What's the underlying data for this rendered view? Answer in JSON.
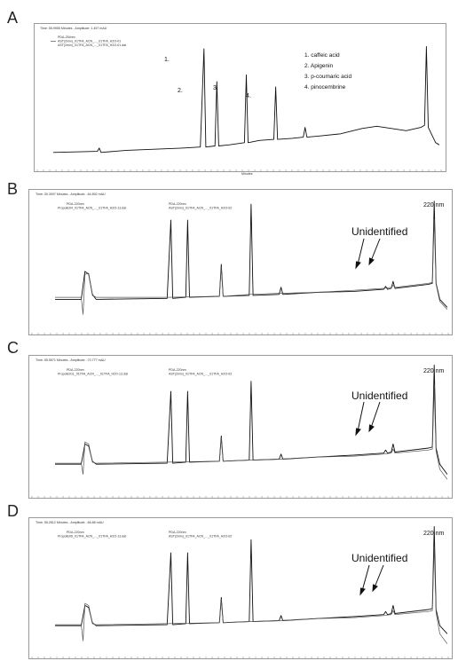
{
  "panels": [
    {
      "letter": "A",
      "status": "Time: 55.9955 Minutes - Amplitude: 1.457 mAU",
      "legend_lines": [
        "PDA-254nm",
        "AST(2mix)_01TFA_ACN_..._01TFA_H2O-01",
        "AST(2mix)_01TFA_ACN_..._01TFA_H2O-01.dat"
      ],
      "x_axis_label": "Minutes",
      "peak_numbers": [
        "1.",
        "2.",
        "3.",
        "4."
      ],
      "compound_list": [
        "1. caffeic acid",
        "2. Apigenin",
        "3. p-coumaric acid",
        "4. pinocembrine"
      ]
    },
    {
      "letter": "B",
      "status": "Time: 30.3097 Minutes - Amplitude: -64.892 mAU",
      "legend_col1": [
        "PDA-220nm",
        "Propolis04_01TFA_ACN_..._01TFA_H2O-13.dat"
      ],
      "legend_col2": [
        "PDA-220nm",
        "AST(2mix)_01TFA_ACN_..._01TFA_H2O-02"
      ],
      "wavelength": "220 nm",
      "annotation": "Unidentified"
    },
    {
      "letter": "C",
      "status": "Time: 55.5571 Minutes - Amplitude: -70.777 mAU",
      "legend_col1": [
        "PDA-220nm",
        "Propolis011_01TFA_ACN_..._01TFA_H2O-13.dat"
      ],
      "legend_col2": [
        "PDA-220nm",
        "AST(2mix)_01TFA_ACN_..._01TFA_H2O-02"
      ],
      "wavelength": "220 nm",
      "annotation": "Unidentified"
    },
    {
      "letter": "D",
      "status": "Time: 55.2812 Minutes - Amplitude: -66.88 mAU",
      "legend_col1": [
        "PDA-220nm",
        "Propolis06_01TFA_ACN_..._01TFA_H2O-13.dat"
      ],
      "legend_col2": [
        "PDA-220nm",
        "AST(2mix)_01TFA_ACN_..._01TFA_H2O-02"
      ],
      "wavelength": "220 nm",
      "annotation": "Unidentified"
    }
  ],
  "chart_data": [
    {
      "type": "line",
      "panel": "A",
      "x_range": [
        0,
        100
      ],
      "y_range": [
        0,
        100
      ],
      "series": [
        {
          "points": [
            [
              0,
              5
            ],
            [
              12,
              6
            ],
            [
              12.5,
              9
            ],
            [
              13,
              5
            ],
            [
              20,
              7
            ],
            [
              35,
              9
            ],
            [
              40,
              10
            ],
            [
              41,
              100
            ],
            [
              41.5,
              10
            ],
            [
              44,
              11
            ],
            [
              44.5,
              70
            ],
            [
              45,
              11
            ],
            [
              48,
              12
            ],
            [
              52,
              14
            ],
            [
              52.5,
              76
            ],
            [
              53,
              14
            ],
            [
              56,
              16
            ],
            [
              60,
              17
            ],
            [
              60.5,
              65
            ],
            [
              61,
              17
            ],
            [
              65,
              18
            ],
            [
              68,
              19
            ],
            [
              68.5,
              28
            ],
            [
              69,
              19
            ],
            [
              72,
              20
            ],
            [
              78,
              22
            ],
            [
              84,
              27
            ],
            [
              88,
              29
            ],
            [
              92,
              27
            ],
            [
              96,
              25
            ],
            [
              100,
              28
            ],
            [
              101,
              30
            ],
            [
              101.5,
              102
            ],
            [
              102,
              28
            ],
            [
              104,
              14
            ],
            [
              105,
              12
            ]
          ]
        }
      ]
    },
    {
      "type": "line",
      "panel": "B",
      "x_range": [
        0,
        100
      ],
      "y_range": [
        0,
        100
      ],
      "series": [
        {
          "points": [
            [
              0,
              20
            ],
            [
              7,
              20
            ],
            [
              8,
              48
            ],
            [
              9,
              45
            ],
            [
              10,
              25
            ],
            [
              11,
              20
            ],
            [
              30,
              21
            ],
            [
              31,
              99
            ],
            [
              31.5,
              21
            ],
            [
              35,
              22
            ],
            [
              35.5,
              99
            ],
            [
              36,
              22
            ],
            [
              44,
              23
            ],
            [
              44.5,
              55
            ],
            [
              45,
              23
            ],
            [
              52,
              24
            ],
            [
              52.5,
              115
            ],
            [
              53,
              24
            ],
            [
              60,
              25
            ],
            [
              60.5,
              32
            ],
            [
              61,
              25
            ],
            [
              70,
              27
            ],
            [
              80,
              28
            ],
            [
              88,
              30
            ],
            [
              88.5,
              33
            ],
            [
              89,
              30
            ],
            [
              90,
              31
            ],
            [
              90.5,
              38
            ],
            [
              91,
              31
            ],
            [
              100,
              35
            ],
            [
              101,
              36
            ],
            [
              101.5,
              118
            ],
            [
              102,
              36
            ],
            [
              103,
              20
            ],
            [
              105,
              12
            ]
          ]
        },
        {
          "points": [
            [
              0,
              22
            ],
            [
              7,
              22
            ],
            [
              7.5,
              5
            ],
            [
              8,
              45
            ],
            [
              9,
              46
            ],
            [
              10,
              24
            ],
            [
              11,
              22
            ],
            [
              30,
              22
            ],
            [
              44,
              23
            ],
            [
              44.5,
              52
            ],
            [
              45,
              23
            ],
            [
              52,
              25
            ],
            [
              60,
              26
            ],
            [
              70,
              27
            ],
            [
              80,
              29
            ],
            [
              88,
              31
            ],
            [
              90,
              32
            ],
            [
              90.5,
              34
            ],
            [
              91,
              32
            ],
            [
              100,
              36
            ],
            [
              101,
              37
            ],
            [
              101.5,
              100
            ],
            [
              102,
              35
            ],
            [
              103,
              18
            ],
            [
              105,
              10
            ]
          ]
        }
      ]
    },
    {
      "type": "line",
      "panel": "C",
      "x_range": [
        0,
        100
      ],
      "y_range": [
        0,
        100
      ],
      "series": [
        {
          "points": [
            [
              0,
              20
            ],
            [
              7,
              20
            ],
            [
              8,
              40
            ],
            [
              9,
              38
            ],
            [
              10,
              23
            ],
            [
              11,
              20
            ],
            [
              30,
              21
            ],
            [
              31,
              92
            ],
            [
              31.5,
              21
            ],
            [
              35,
              22
            ],
            [
              35.5,
              92
            ],
            [
              36,
              22
            ],
            [
              44,
              23
            ],
            [
              44.5,
              48
            ],
            [
              45,
              23
            ],
            [
              52,
              24
            ],
            [
              52.5,
              102
            ],
            [
              53,
              24
            ],
            [
              60,
              25
            ],
            [
              60.5,
              30
            ],
            [
              61,
              25
            ],
            [
              70,
              27
            ],
            [
              80,
              29
            ],
            [
              88,
              31
            ],
            [
              88.5,
              34
            ],
            [
              89,
              31
            ],
            [
              90,
              32
            ],
            [
              90.5,
              40
            ],
            [
              91,
              32
            ],
            [
              100,
              36
            ],
            [
              101,
              37
            ],
            [
              101.5,
              118
            ],
            [
              102,
              36
            ],
            [
              103,
              20
            ],
            [
              105,
              10
            ]
          ]
        },
        {
          "points": [
            [
              0,
              21
            ],
            [
              7,
              21
            ],
            [
              7.5,
              10
            ],
            [
              8,
              42
            ],
            [
              9,
              40
            ],
            [
              10,
              22
            ],
            [
              11,
              21
            ],
            [
              30,
              22
            ],
            [
              44,
              23
            ],
            [
              44.5,
              46
            ],
            [
              45,
              23
            ],
            [
              52,
              24
            ],
            [
              60,
              25
            ],
            [
              70,
              27
            ],
            [
              80,
              28
            ],
            [
              88,
              30
            ],
            [
              90,
              31
            ],
            [
              90.5,
              35
            ],
            [
              91,
              31
            ],
            [
              100,
              34
            ],
            [
              101,
              35
            ],
            [
              101.5,
              95
            ],
            [
              102,
              33
            ],
            [
              103,
              15
            ],
            [
              105,
              5
            ]
          ]
        }
      ]
    },
    {
      "type": "line",
      "panel": "D",
      "x_range": [
        0,
        100
      ],
      "y_range": [
        0,
        100
      ],
      "series": [
        {
          "points": [
            [
              0,
              20
            ],
            [
              7,
              20
            ],
            [
              8,
              40
            ],
            [
              9,
              38
            ],
            [
              10,
              23
            ],
            [
              11,
              20
            ],
            [
              30,
              21
            ],
            [
              31,
              92
            ],
            [
              31.5,
              21
            ],
            [
              35,
              22
            ],
            [
              35.5,
              92
            ],
            [
              36,
              22
            ],
            [
              44,
              23
            ],
            [
              44.5,
              48
            ],
            [
              45,
              23
            ],
            [
              52,
              24
            ],
            [
              52.5,
              105
            ],
            [
              53,
              24
            ],
            [
              60,
              25
            ],
            [
              60.5,
              30
            ],
            [
              61,
              25
            ],
            [
              70,
              27
            ],
            [
              80,
              29
            ],
            [
              88,
              31
            ],
            [
              88.5,
              34
            ],
            [
              89,
              31
            ],
            [
              90,
              32
            ],
            [
              90.5,
              40
            ],
            [
              91,
              32
            ],
            [
              100,
              36
            ],
            [
              101,
              37
            ],
            [
              101.5,
              118
            ],
            [
              102,
              36
            ],
            [
              103,
              20
            ],
            [
              105,
              12
            ]
          ]
        },
        {
          "points": [
            [
              0,
              21
            ],
            [
              7,
              21
            ],
            [
              7.5,
              5
            ],
            [
              8,
              42
            ],
            [
              9,
              40
            ],
            [
              10,
              22
            ],
            [
              11,
              21
            ],
            [
              30,
              22
            ],
            [
              44,
              23
            ],
            [
              44.5,
              46
            ],
            [
              45,
              23
            ],
            [
              52,
              24
            ],
            [
              60,
              25
            ],
            [
              70,
              27
            ],
            [
              80,
              28
            ],
            [
              88,
              30
            ],
            [
              90,
              31
            ],
            [
              90.5,
              35
            ],
            [
              91,
              31
            ],
            [
              100,
              34
            ],
            [
              101,
              35
            ],
            [
              101.5,
              98
            ],
            [
              102,
              33
            ],
            [
              103,
              12
            ],
            [
              105,
              2
            ]
          ]
        }
      ]
    }
  ]
}
